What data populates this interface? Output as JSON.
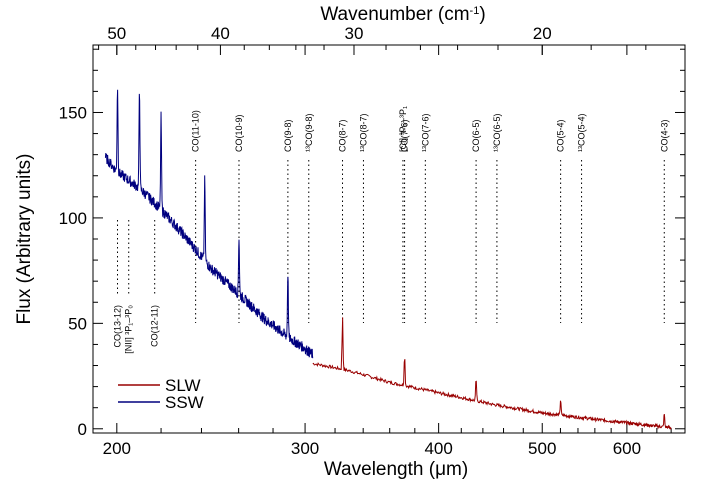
{
  "chart_data": {
    "type": "line",
    "xlabel": "Wavelength (μm)",
    "x2label_main": "Wavenumber (cm",
    "x2label_sup": "-1",
    "x2label_end": ")",
    "ylabel": "Flux (Arbitrary units)",
    "x_scale": "log",
    "xlim": [
      190,
      680
    ],
    "ylim": [
      -2,
      182
    ],
    "x_ticks": [
      200,
      300,
      400,
      500,
      600
    ],
    "x_tick_labels": [
      "200",
      "300",
      "400",
      "500",
      "600"
    ],
    "y_ticks": [
      0,
      50,
      100,
      150
    ],
    "y_tick_labels": [
      "0",
      "50",
      "100",
      "150"
    ],
    "x2_ticks": [
      50,
      40,
      30,
      20
    ],
    "x2_tick_labels": [
      "50",
      "40",
      "30",
      "20"
    ],
    "legend_position": "bottom-left",
    "series": [
      {
        "name": "SLW",
        "color": "#990000",
        "continuum": [
          [
            305,
            31
          ],
          [
            330,
            27.5
          ],
          [
            360,
            22
          ],
          [
            400,
            17
          ],
          [
            450,
            11.5
          ],
          [
            500,
            7.5
          ],
          [
            560,
            4.5
          ],
          [
            620,
            2
          ],
          [
            660,
            0.5
          ]
        ],
        "peaks": [
          [
            325.2,
            54
          ],
          [
            371.7,
            36
          ],
          [
            433.6,
            24
          ],
          [
            520.2,
            14
          ],
          [
            650.3,
            7
          ]
        ]
      },
      {
        "name": "SSW",
        "color": "#00007f",
        "continuum": [
          [
            195,
            129
          ],
          [
            200,
            122
          ],
          [
            210,
            114
          ],
          [
            220,
            104
          ],
          [
            230,
            93
          ],
          [
            245,
            76
          ],
          [
            260,
            64
          ],
          [
            275,
            52
          ],
          [
            290,
            43
          ],
          [
            300,
            38
          ],
          [
            305,
            35
          ]
        ],
        "peaks": [
          [
            200.3,
            163
          ],
          [
            210.0,
            162
          ],
          [
            220.0,
            148
          ],
          [
            241.7,
            118
          ],
          [
            260.2,
            91
          ],
          [
            289.1,
            74
          ]
        ]
      }
    ],
    "line_annotations": [
      {
        "label": "CO(13-12)",
        "wl": 200.3,
        "pos": "below"
      },
      {
        "label": "[NII] ³P₁–³P₀",
        "wl": 205.2,
        "pos": "below"
      },
      {
        "label": "CO(12-11)",
        "wl": 217.0,
        "pos": "below"
      },
      {
        "label": "CO(11-10)",
        "wl": 237.0,
        "pos": "above"
      },
      {
        "label": "CO(10-9)",
        "wl": 260.2,
        "pos": "above"
      },
      {
        "label": "CO(9-8)",
        "wl": 289.1,
        "pos": "above"
      },
      {
        "label": "¹³CO(9-8)",
        "wl": 302.4,
        "pos": "above"
      },
      {
        "label": "CO(8-7)",
        "wl": 325.2,
        "pos": "above"
      },
      {
        "label": "¹³CO(8-7)",
        "wl": 340.2,
        "pos": "above"
      },
      {
        "label": "[CI] ³P₂–³P₁",
        "wl": 370.4,
        "pos": "above"
      },
      {
        "label": "CO(7-6)",
        "wl": 371.7,
        "pos": "above"
      },
      {
        "label": "¹³CO(7-6)",
        "wl": 388.7,
        "pos": "above"
      },
      {
        "label": "CO(6-5)",
        "wl": 433.6,
        "pos": "above"
      },
      {
        "label": "¹³CO(6-5)",
        "wl": 453.5,
        "pos": "above"
      },
      {
        "label": "CO(5-4)",
        "wl": 520.2,
        "pos": "above"
      },
      {
        "label": "¹³CO(5-4)",
        "wl": 544.2,
        "pos": "above"
      },
      {
        "label": "CO(4-3)",
        "wl": 650.3,
        "pos": "above"
      }
    ]
  }
}
